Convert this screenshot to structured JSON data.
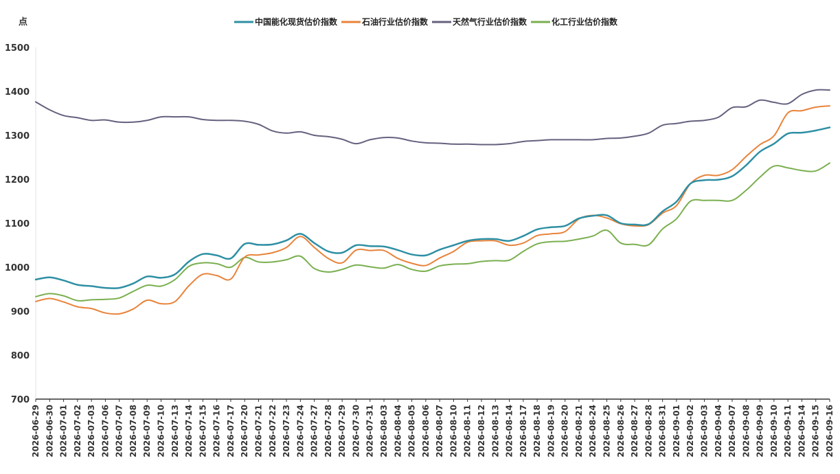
{
  "chart_data": {
    "type": "line",
    "ylabel": "点",
    "ylim": [
      700,
      1500
    ],
    "yticks": [
      700,
      800,
      900,
      1000,
      1100,
      1200,
      1300,
      1400,
      1500
    ],
    "grid": false,
    "legend_position": "top-center",
    "x": [
      "2026-06-29",
      "2026-06-30",
      "2026-07-01",
      "2026-07-02",
      "2026-07-03",
      "2026-07-06",
      "2026-07-07",
      "2026-07-08",
      "2026-07-09",
      "2026-07-10",
      "2026-07-13",
      "2026-07-14",
      "2026-07-15",
      "2026-07-16",
      "2026-07-17",
      "2026-07-20",
      "2026-07-21",
      "2026-07-22",
      "2026-07-23",
      "2026-07-24",
      "2026-07-27",
      "2026-07-28",
      "2026-07-29",
      "2026-07-30",
      "2026-07-31",
      "2026-08-03",
      "2026-08-04",
      "2026-08-05",
      "2026-08-06",
      "2026-08-07",
      "2026-08-10",
      "2026-08-11",
      "2026-08-12",
      "2026-08-13",
      "2026-08-14",
      "2026-08-17",
      "2026-08-18",
      "2026-08-19",
      "2026-08-20",
      "2026-08-21",
      "2026-08-24",
      "2026-08-25",
      "2026-08-26",
      "2026-08-27",
      "2026-08-28",
      "2026-08-31",
      "2026-09-01",
      "2026-09-02",
      "2026-09-03",
      "2026-09-04",
      "2026-09-07",
      "2026-09-08",
      "2026-09-09",
      "2026-09-10",
      "2026-09-11",
      "2026-09-14",
      "2026-09-15",
      "2026-09-16"
    ],
    "series": [
      {
        "name": "中国能化现货估价指数",
        "color": "#2E8FA3",
        "values": [
          972,
          977,
          970,
          960,
          957,
          953,
          953,
          963,
          979,
          976,
          984,
          1013,
          1030,
          1027,
          1020,
          1053,
          1051,
          1052,
          1061,
          1076,
          1055,
          1036,
          1033,
          1050,
          1048,
          1047,
          1039,
          1029,
          1027,
          1040,
          1050,
          1060,
          1064,
          1064,
          1060,
          1071,
          1086,
          1091,
          1094,
          1111,
          1117,
          1118,
          1100,
          1097,
          1098,
          1127,
          1149,
          1190,
          1198,
          1199,
          1207,
          1232,
          1263,
          1281,
          1304,
          1306,
          1311,
          1318
        ]
      },
      {
        "name": "石油行业估价指数",
        "color": "#E8833A",
        "values": [
          922,
          929,
          921,
          910,
          906,
          896,
          894,
          905,
          925,
          917,
          922,
          958,
          984,
          981,
          973,
          1023,
          1028,
          1033,
          1045,
          1070,
          1045,
          1020,
          1010,
          1039,
          1038,
          1038,
          1020,
          1009,
          1004,
          1021,
          1036,
          1057,
          1060,
          1060,
          1050,
          1055,
          1072,
          1076,
          1081,
          1110,
          1118,
          1112,
          1099,
          1094,
          1097,
          1123,
          1140,
          1190,
          1209,
          1209,
          1222,
          1252,
          1279,
          1299,
          1351,
          1356,
          1364,
          1367
        ]
      },
      {
        "name": "天然气行业估价指数",
        "color": "#66607E",
        "values": [
          1376,
          1358,
          1345,
          1340,
          1334,
          1335,
          1330,
          1330,
          1334,
          1342,
          1342,
          1342,
          1336,
          1334,
          1334,
          1332,
          1325,
          1310,
          1305,
          1308,
          1300,
          1297,
          1291,
          1281,
          1290,
          1295,
          1294,
          1287,
          1283,
          1282,
          1280,
          1280,
          1279,
          1279,
          1281,
          1286,
          1288,
          1290,
          1290,
          1290,
          1290,
          1293,
          1294,
          1298,
          1305,
          1323,
          1327,
          1332,
          1334,
          1341,
          1363,
          1365,
          1380,
          1375,
          1372,
          1393,
          1403,
          1403
        ]
      },
      {
        "name": "化工行业估价指数",
        "color": "#7AAF4F",
        "values": [
          933,
          940,
          935,
          924,
          926,
          927,
          930,
          945,
          959,
          957,
          972,
          1002,
          1010,
          1008,
          1000,
          1022,
          1012,
          1012,
          1017,
          1025,
          997,
          989,
          995,
          1005,
          1001,
          998,
          1006,
          995,
          991,
          1003,
          1007,
          1008,
          1013,
          1015,
          1016,
          1036,
          1053,
          1058,
          1059,
          1064,
          1071,
          1084,
          1055,
          1052,
          1051,
          1087,
          1110,
          1150,
          1152,
          1152,
          1152,
          1175,
          1205,
          1230,
          1226,
          1220,
          1219,
          1237
        ]
      }
    ]
  }
}
